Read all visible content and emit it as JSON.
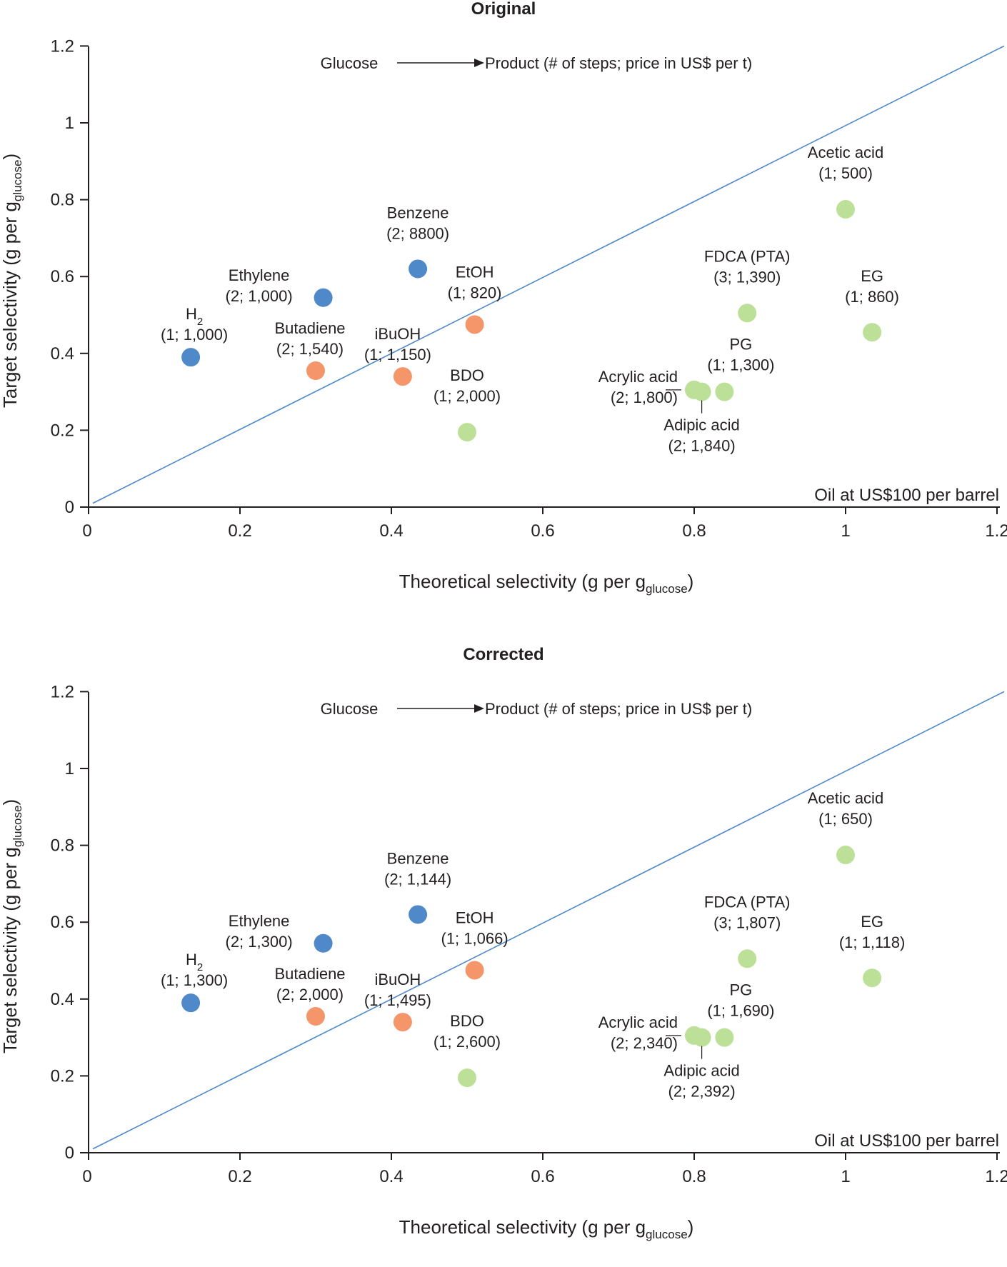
{
  "colors": {
    "blue": "#4f89c9",
    "orange": "#f4956a",
    "green": "#bde098",
    "diagonal": "#4f89c9",
    "axis": "#231f20"
  },
  "charts": [
    {
      "title": "Original",
      "header_left": "Glucose",
      "header_right": "Product (# of steps; price in US$ per t)",
      "note": "Oil at US$100 per barrel",
      "xlabel_main": "Theoretical selectivity (g per g",
      "xlabel_sub": "glucose",
      "xlabel_close": ")",
      "ylabel_main": "Target selectivity (g per g",
      "ylabel_sub": "glucose",
      "ylabel_close": ")",
      "xticks": [
        "0",
        "0.2",
        "0.4",
        "0.6",
        "0.8",
        "1",
        "1.2"
      ],
      "yticks": [
        "0",
        "0.2",
        "0.4",
        "0.6",
        "0.8",
        "1",
        "1.2"
      ],
      "points": [
        {
          "name": "H",
          "sub": "2",
          "info": "(1; 1,000)",
          "color": "blue"
        },
        {
          "name": "Ethylene",
          "sub": "",
          "info": "(2; 1,000)",
          "color": "blue"
        },
        {
          "name": "Benzene",
          "sub": "",
          "info": "(2; 8800)",
          "color": "blue"
        },
        {
          "name": "Butadiene",
          "sub": "",
          "info": "(2; 1,540)",
          "color": "orange"
        },
        {
          "name": "iBuOH",
          "sub": "",
          "info": "(1; 1,150)",
          "color": "orange"
        },
        {
          "name": "EtOH",
          "sub": "",
          "info": "(1; 820)",
          "color": "orange"
        },
        {
          "name": "BDO",
          "sub": "",
          "info": "(1; 2,000)",
          "color": "green"
        },
        {
          "name": "Acrylic acid",
          "sub": "",
          "info": "(2; 1,800)",
          "color": "green"
        },
        {
          "name": "Adipic acid",
          "sub": "",
          "info": "(2; 1,840)",
          "color": "green"
        },
        {
          "name": "PG",
          "sub": "",
          "info": "(1; 1,300)",
          "color": "green"
        },
        {
          "name": "FDCA (PTA)",
          "sub": "",
          "info": "(3; 1,390)",
          "color": "green"
        },
        {
          "name": "Acetic acid",
          "sub": "",
          "info": "(1; 500)",
          "color": "green"
        },
        {
          "name": "EG",
          "sub": "",
          "info": "(1; 860)",
          "color": "green"
        }
      ]
    },
    {
      "title": "Corrected",
      "header_left": "Glucose",
      "header_right": "Product (# of steps; price in US$ per t)",
      "note": "Oil at US$100 per barrel",
      "xlabel_main": "Theoretical selectivity (g per g",
      "xlabel_sub": "glucose",
      "xlabel_close": ")",
      "ylabel_main": "Target selectivity (g per g",
      "ylabel_sub": "glucose",
      "ylabel_close": ")",
      "xticks": [
        "0",
        "0.2",
        "0.4",
        "0.6",
        "0.8",
        "1",
        "1.2"
      ],
      "yticks": [
        "0",
        "0.2",
        "0.4",
        "0.6",
        "0.8",
        "1",
        "1.2"
      ],
      "points": [
        {
          "name": "H",
          "sub": "2",
          "info": "(1; 1,300)",
          "color": "blue"
        },
        {
          "name": "Ethylene",
          "sub": "",
          "info": "(2; 1,300)",
          "color": "blue"
        },
        {
          "name": "Benzene",
          "sub": "",
          "info": "(2; 1,144)",
          "color": "blue"
        },
        {
          "name": "Butadiene",
          "sub": "",
          "info": "(2; 2,000)",
          "color": "orange"
        },
        {
          "name": "iBuOH",
          "sub": "",
          "info": "(1; 1,495)",
          "color": "orange"
        },
        {
          "name": "EtOH",
          "sub": "",
          "info": "(1; 1,066)",
          "color": "orange"
        },
        {
          "name": "BDO",
          "sub": "",
          "info": "(1; 2,600)",
          "color": "green"
        },
        {
          "name": "Acrylic acid",
          "sub": "",
          "info": "(2; 2,340)",
          "color": "green"
        },
        {
          "name": "Adipic acid",
          "sub": "",
          "info": "(2; 2,392)",
          "color": "green"
        },
        {
          "name": "PG",
          "sub": "",
          "info": "(1; 1,690)",
          "color": "green"
        },
        {
          "name": "FDCA (PTA)",
          "sub": "",
          "info": "(3; 1,807)",
          "color": "green"
        },
        {
          "name": "Acetic acid",
          "sub": "",
          "info": "(1; 650)",
          "color": "green"
        },
        {
          "name": "EG",
          "sub": "",
          "info": "(1; 1,118)",
          "color": "green"
        }
      ]
    }
  ],
  "chart_data": [
    {
      "type": "scatter",
      "title": "Original",
      "xlabel": "Theoretical selectivity (g per g_glucose)",
      "ylabel": "Target selectivity (g per g_glucose)",
      "xlim": [
        0,
        1.2
      ],
      "ylim": [
        0,
        1.2
      ],
      "reference_line": {
        "from": [
          0,
          0.01
        ],
        "to": [
          1.2,
          1.2
        ]
      },
      "series": [
        {
          "name": "H2",
          "x": 0.135,
          "y": 0.39
        },
        {
          "name": "Ethylene",
          "x": 0.31,
          "y": 0.545
        },
        {
          "name": "Benzene",
          "x": 0.435,
          "y": 0.62
        },
        {
          "name": "Butadiene",
          "x": 0.3,
          "y": 0.355
        },
        {
          "name": "iBuOH",
          "x": 0.415,
          "y": 0.34
        },
        {
          "name": "EtOH",
          "x": 0.51,
          "y": 0.475
        },
        {
          "name": "BDO",
          "x": 0.5,
          "y": 0.195
        },
        {
          "name": "Acrylic acid",
          "x": 0.8,
          "y": 0.305
        },
        {
          "name": "Adipic acid",
          "x": 0.81,
          "y": 0.3
        },
        {
          "name": "PG",
          "x": 0.84,
          "y": 0.3
        },
        {
          "name": "FDCA (PTA)",
          "x": 0.87,
          "y": 0.505
        },
        {
          "name": "Acetic acid",
          "x": 1.0,
          "y": 0.775
        },
        {
          "name": "EG",
          "x": 1.035,
          "y": 0.455
        }
      ]
    },
    {
      "type": "scatter",
      "title": "Corrected",
      "xlabel": "Theoretical selectivity (g per g_glucose)",
      "ylabel": "Target selectivity (g per g_glucose)",
      "xlim": [
        0,
        1.2
      ],
      "ylim": [
        0,
        1.2
      ],
      "reference_line": {
        "from": [
          0,
          0.01
        ],
        "to": [
          1.2,
          1.2
        ]
      },
      "series": [
        {
          "name": "H2",
          "x": 0.135,
          "y": 0.39
        },
        {
          "name": "Ethylene",
          "x": 0.31,
          "y": 0.545
        },
        {
          "name": "Benzene",
          "x": 0.435,
          "y": 0.62
        },
        {
          "name": "Butadiene",
          "x": 0.3,
          "y": 0.355
        },
        {
          "name": "iBuOH",
          "x": 0.415,
          "y": 0.34
        },
        {
          "name": "EtOH",
          "x": 0.51,
          "y": 0.475
        },
        {
          "name": "BDO",
          "x": 0.5,
          "y": 0.195
        },
        {
          "name": "Acrylic acid",
          "x": 0.8,
          "y": 0.305
        },
        {
          "name": "Adipic acid",
          "x": 0.81,
          "y": 0.3
        },
        {
          "name": "PG",
          "x": 0.84,
          "y": 0.3
        },
        {
          "name": "FDCA (PTA)",
          "x": 0.87,
          "y": 0.505
        },
        {
          "name": "Acetic acid",
          "x": 1.0,
          "y": 0.775
        },
        {
          "name": "EG",
          "x": 1.035,
          "y": 0.455
        }
      ]
    }
  ]
}
